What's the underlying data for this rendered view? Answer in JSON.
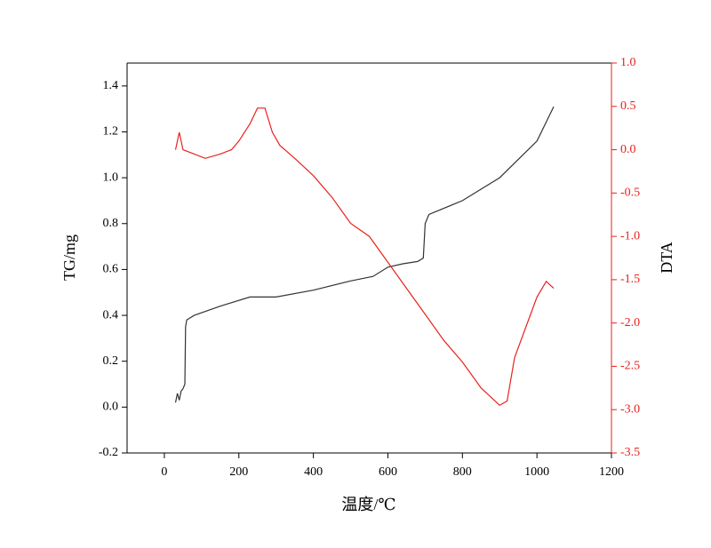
{
  "chart_data": {
    "type": "line",
    "x_label": "温度/℃",
    "y_label": "TG/mg",
    "y2_label": "DTA",
    "xlim": [
      -100,
      1200
    ],
    "xticks": [
      0,
      200,
      400,
      600,
      800,
      1000,
      1200
    ],
    "ylim": [
      -0.2,
      1.5
    ],
    "yticks": [
      -0.2,
      {
        "value": 0,
        "label": "0.0"
      },
      0.2,
      0.4,
      0.6,
      0.8,
      {
        "value": 1,
        "label": "1.0"
      },
      1.2,
      1.4
    ],
    "y2lim": [
      -3.5,
      1.0
    ],
    "y2ticks": [
      {
        "value": -3.5,
        "label": "-3.5"
      },
      {
        "value": -3,
        "label": "-3.0"
      },
      -2.5,
      {
        "value": -2,
        "label": "-2.0"
      },
      -1.5,
      {
        "value": -1,
        "label": "-1.0"
      },
      -0.5,
      {
        "value": 0,
        "label": "0.0"
      },
      0.5,
      {
        "value": 1,
        "label": "1.0"
      }
    ],
    "axis_color": "#000000",
    "y2_axis_color": "#e8221e",
    "series": [
      {
        "name": "TG",
        "color": "#333333",
        "x": [
          30,
          35,
          40,
          45,
          50,
          55,
          57,
          60,
          80,
          150,
          230,
          300,
          400,
          500,
          560,
          600,
          640,
          680,
          695,
          700,
          710,
          800,
          900,
          1000,
          1045
        ],
        "values": [
          0.02,
          0.06,
          0.03,
          0.07,
          0.08,
          0.1,
          0.35,
          0.38,
          0.4,
          0.44,
          0.48,
          0.48,
          0.51,
          0.55,
          0.57,
          0.61,
          0.625,
          0.635,
          0.65,
          0.8,
          0.84,
          0.9,
          1.0,
          1.16,
          1.31
        ]
      },
      {
        "name": "DTA",
        "color": "#e8221e",
        "axis": "y2",
        "x": [
          30,
          40,
          45,
          50,
          80,
          110,
          150,
          180,
          200,
          230,
          250,
          270,
          290,
          310,
          350,
          400,
          450,
          500,
          550,
          600,
          650,
          700,
          750,
          800,
          850,
          900,
          920,
          940,
          970,
          1000,
          1025,
          1045
        ],
        "values": [
          0.0,
          0.2,
          0.1,
          0.0,
          -0.05,
          -0.1,
          -0.05,
          0.0,
          0.1,
          0.3,
          0.48,
          0.48,
          0.2,
          0.05,
          -0.1,
          -0.3,
          -0.55,
          -0.85,
          -1.0,
          -1.3,
          -1.6,
          -1.9,
          -2.2,
          -2.45,
          -2.75,
          -2.95,
          -2.9,
          -2.4,
          -2.05,
          -1.7,
          -1.52,
          -1.6
        ]
      }
    ]
  }
}
